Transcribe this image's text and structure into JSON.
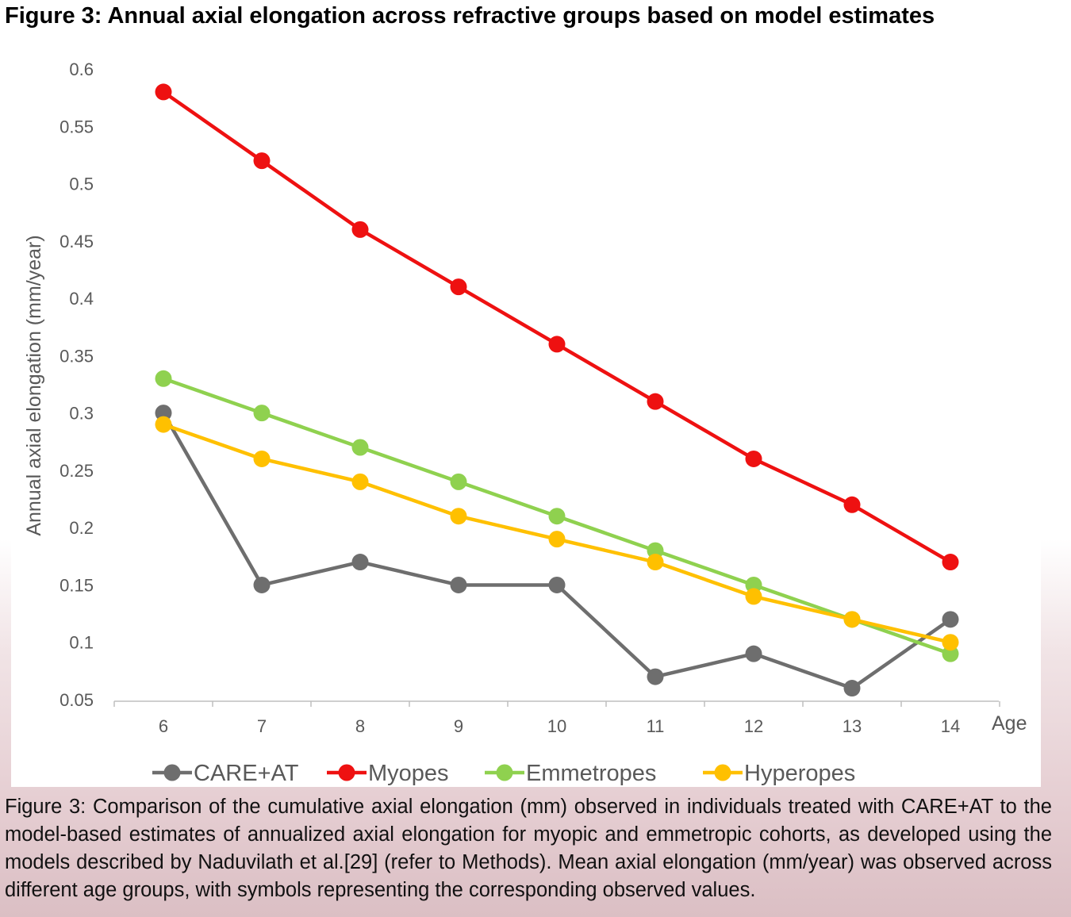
{
  "figure": {
    "title": "Figure 3: Annual axial elongation across refractive groups based on model estimates",
    "caption": "Figure 3: Comparison of the cumulative axial elongation (mm) observed in individuals treated with CARE+AT to the model-based estimates of annualized axial elongation for myopic and emmetropic cohorts, as developed using the models described by Naduvilath et al.[29] (refer to Methods). Mean axial elongation (mm/year) was observed across different age groups, with symbols representing the corresponding observed values."
  },
  "chart_data": {
    "type": "line",
    "title": "",
    "xlabel": "Age",
    "ylabel": "Annual axial elongation (mm/year)",
    "x": [
      6,
      7,
      8,
      9,
      10,
      11,
      12,
      13,
      14
    ],
    "x_tick_labels": [
      "6",
      "7",
      "8",
      "9",
      "10",
      "11",
      "12",
      "13",
      "14"
    ],
    "ylim": [
      0.05,
      0.6
    ],
    "y_ticks": [
      0.05,
      0.1,
      0.15,
      0.2,
      0.25,
      0.3,
      0.35,
      0.4,
      0.45,
      0.5,
      0.55,
      0.6
    ],
    "y_tick_labels": [
      "0.05",
      "0.1",
      "0.15",
      "0.2",
      "0.25",
      "0.3",
      "0.35",
      "0.4",
      "0.45",
      "0.5",
      "0.55",
      "0.6"
    ],
    "grid": false,
    "legend_position": "bottom",
    "series": [
      {
        "name": "CARE+AT",
        "color": "#6e6e6e",
        "values": [
          0.3,
          0.15,
          0.17,
          0.15,
          0.15,
          0.07,
          0.09,
          0.06,
          0.12
        ]
      },
      {
        "name": "Myopes",
        "color": "#ee1111",
        "values": [
          0.58,
          0.52,
          0.46,
          0.41,
          0.36,
          0.31,
          0.26,
          0.22,
          0.17
        ]
      },
      {
        "name": "Emmetropes",
        "color": "#8fd14f",
        "values": [
          0.33,
          0.3,
          0.27,
          0.24,
          0.21,
          0.18,
          0.15,
          0.12,
          0.09
        ]
      },
      {
        "name": "Hyperopes",
        "color": "#ffc000",
        "values": [
          0.29,
          0.26,
          0.24,
          0.21,
          0.19,
          0.17,
          0.14,
          0.12,
          0.1
        ]
      }
    ]
  }
}
